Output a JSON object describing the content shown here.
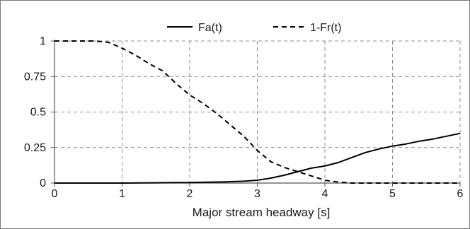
{
  "chart_data": {
    "type": "line",
    "title": "",
    "xlabel": "Major stream headway [s]",
    "ylabel": "",
    "xlim": [
      0,
      6
    ],
    "ylim": [
      0,
      1
    ],
    "x_ticks": [
      0,
      1,
      2,
      3,
      4,
      5,
      6
    ],
    "x_tick_labels": [
      "0",
      "1",
      "2",
      "3",
      "4",
      "5",
      "6"
    ],
    "y_ticks": [
      0,
      0.25,
      0.5,
      0.75,
      1
    ],
    "y_tick_labels": [
      "0",
      "0.25",
      "0.5",
      "0.75",
      "1"
    ],
    "grid": "dashed",
    "legend_position": "top",
    "series": [
      {
        "name": "Fa(t)",
        "line_style": "solid",
        "color": "#000000",
        "x": [
          0,
          0.5,
          1,
          1.5,
          2,
          2.5,
          2.8,
          3.0,
          3.2,
          3.4,
          3.6,
          3.8,
          4.0,
          4.2,
          4.4,
          4.6,
          4.8,
          5.0,
          5.2,
          5.4,
          5.6,
          5.8,
          6.0
        ],
        "y": [
          0,
          0,
          0,
          0.002,
          0.004,
          0.008,
          0.013,
          0.02,
          0.035,
          0.055,
          0.08,
          0.105,
          0.12,
          0.145,
          0.18,
          0.215,
          0.24,
          0.26,
          0.275,
          0.295,
          0.31,
          0.33,
          0.35
        ]
      },
      {
        "name": "1-Fr(t)",
        "line_style": "dashed",
        "color": "#000000",
        "x": [
          0,
          0.3,
          0.6,
          0.8,
          1.0,
          1.2,
          1.4,
          1.6,
          1.8,
          2.0,
          2.2,
          2.4,
          2.6,
          2.8,
          3.0,
          3.2,
          3.4,
          3.6,
          3.8,
          4.0,
          4.2,
          4.4,
          4.6,
          6.0
        ],
        "y": [
          1,
          1,
          1,
          0.99,
          0.95,
          0.9,
          0.84,
          0.79,
          0.7,
          0.62,
          0.56,
          0.49,
          0.41,
          0.33,
          0.23,
          0.15,
          0.11,
          0.08,
          0.05,
          0.02,
          0.007,
          0.0,
          0.0,
          0.0
        ]
      }
    ]
  }
}
